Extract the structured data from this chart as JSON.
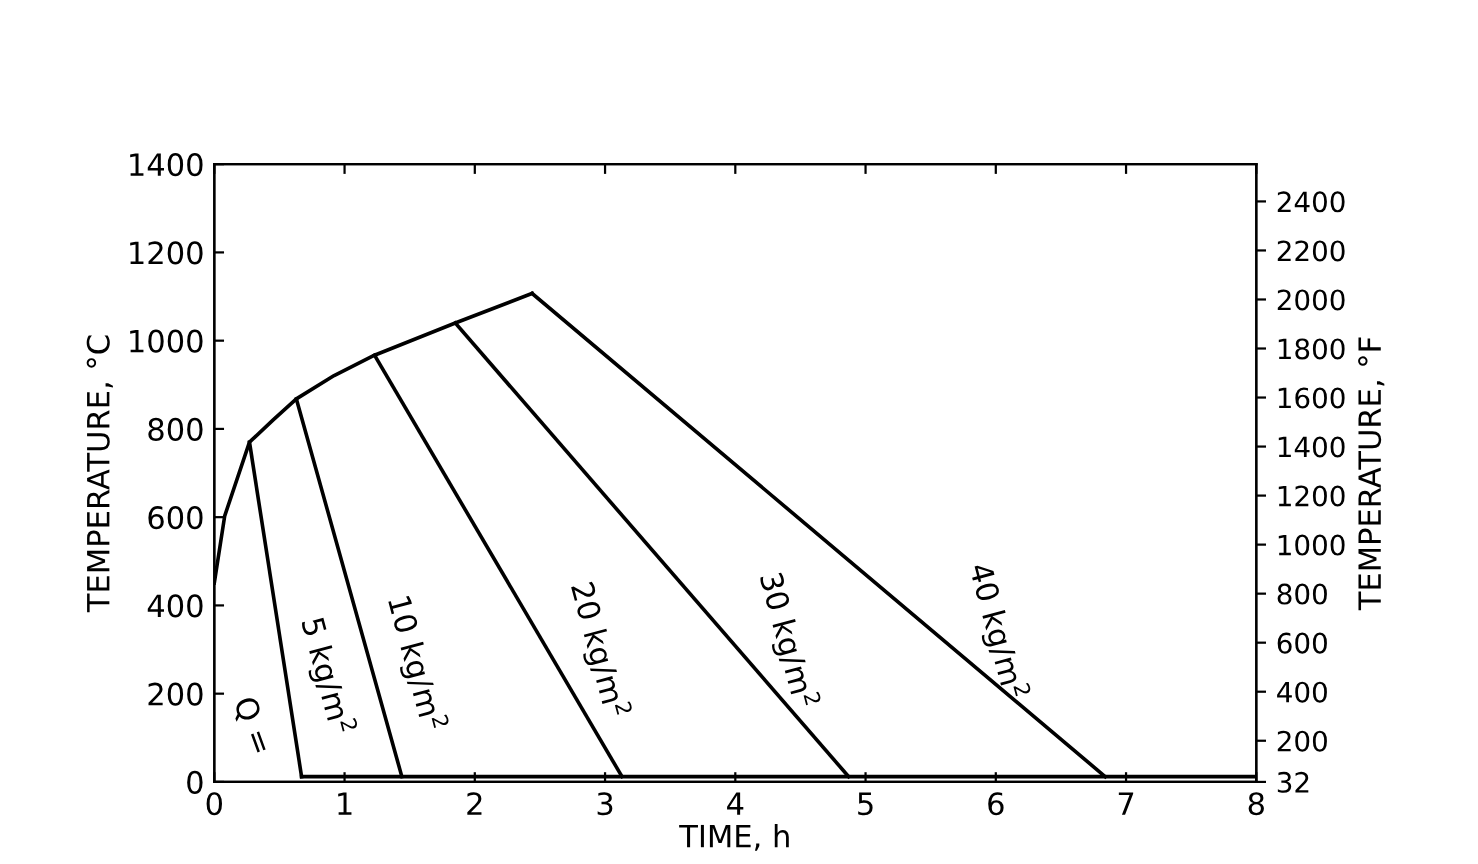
{
  "chart_data": {
    "type": "line",
    "xlabel": "TIME, h",
    "ylabel": "TEMPERATURE, °C",
    "y2label": "TEMPERATURE, °F",
    "xlim": [
      0,
      8
    ],
    "xticks": [
      0,
      1,
      2,
      3,
      4,
      5,
      6,
      7,
      8
    ],
    "ylim": [
      0,
      1400
    ],
    "yticks": [
      0,
      200,
      400,
      600,
      800,
      1000,
      1200,
      1400
    ],
    "y2lim": [
      32,
      2552
    ],
    "y2ticks": [
      32,
      200,
      400,
      600,
      800,
      1000,
      1200,
      1400,
      1600,
      1800,
      2000,
      2200,
      2400
    ],
    "grid": false,
    "marker": "none",
    "line_style": "solid",
    "series": [
      {
        "color": "#000000",
        "x": [
          0,
          0.08,
          0.27,
          0.45,
          0.63,
          0.92,
          1.23,
          1.85,
          2.44
        ],
        "values": [
          451,
          603,
          770,
          820,
          868,
          921,
          967,
          1040,
          1107
        ]
      },
      {
        "name": "5 kg/m$^{2}$",
        "color": "#000000",
        "x": [
          0.27,
          0.67
        ],
        "values": [
          770,
          12
        ]
      },
      {
        "name": "10 kg/m$^{2}$",
        "color": "#000000",
        "x": [
          0.63,
          1.44
        ],
        "values": [
          868,
          12
        ]
      },
      {
        "name": "20 kg/m$^{2}$",
        "color": "#000000",
        "x": [
          1.23,
          3.13
        ],
        "values": [
          967,
          12
        ]
      },
      {
        "name": "30 kg/m$^{2}$",
        "color": "#000000",
        "x": [
          1.85,
          4.87
        ],
        "values": [
          1040,
          12
        ]
      },
      {
        "name": "40 kg/m$^{2}$",
        "color": "#000000",
        "x": [
          2.44,
          6.84
        ],
        "values": [
          1107,
          12
        ]
      },
      {
        "color": "#000000",
        "x": [
          0.67,
          8
        ],
        "values": [
          12,
          12
        ]
      }
    ],
    "annotations": [
      "Q ="
    ]
  }
}
